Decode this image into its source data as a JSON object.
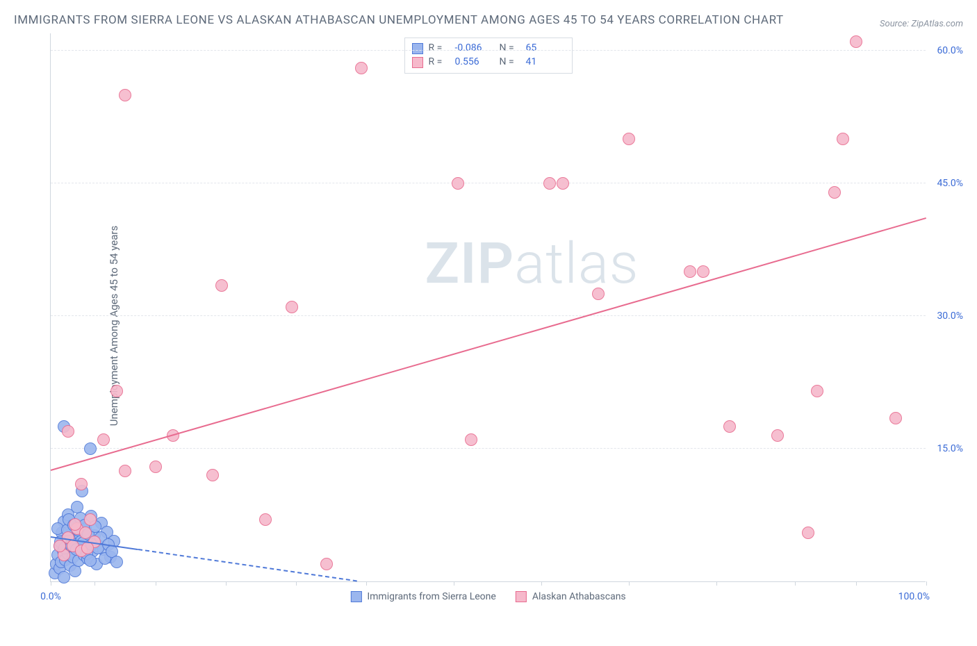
{
  "title": "IMMIGRANTS FROM SIERRA LEONE VS ALASKAN ATHABASCAN UNEMPLOYMENT AMONG AGES 45 TO 54 YEARS CORRELATION CHART",
  "source_prefix": "Source: ",
  "source_name": "ZipAtlas.com",
  "ylabel": "Unemployment Among Ages 45 to 54 years",
  "watermark_a": "ZIP",
  "watermark_b": "atlas",
  "chart": {
    "type": "scatter",
    "xlim": [
      0,
      100
    ],
    "ylim": [
      0,
      62
    ],
    "x_tick_positions": [
      0,
      5,
      12,
      20,
      28,
      36,
      46,
      56,
      66,
      76,
      85,
      92,
      100
    ],
    "x_min_label": "0.0%",
    "x_max_label": "100.0%",
    "y_ticks": [
      15,
      30,
      45,
      60
    ],
    "y_tick_labels": [
      "15.0%",
      "30.0%",
      "45.0%",
      "60.0%"
    ],
    "grid_color": "#e2e6eb",
    "axis_color": "#cfd6de",
    "tick_label_color": "#3b6bd6",
    "background_color": "#ffffff",
    "marker_radius": 9,
    "marker_border_width": 1,
    "marker_fill_opacity": 0.28,
    "series": [
      {
        "key": "sierra",
        "label": "Immigrants from Sierra Leone",
        "color_border": "#4f79d8",
        "color_fill": "#9bb6ee",
        "R": "-0.086",
        "N": "65",
        "trend": {
          "x1": 0,
          "y1": 5.0,
          "x2": 35,
          "y2": 0.0,
          "style": "solid_then_dash",
          "split_x": 10
        },
        "points": [
          [
            0.5,
            1.0
          ],
          [
            0.6,
            2.0
          ],
          [
            0.8,
            3.0
          ],
          [
            1.0,
            1.5
          ],
          [
            1.0,
            4.0
          ],
          [
            1.2,
            2.2
          ],
          [
            1.3,
            5.5
          ],
          [
            1.4,
            3.5
          ],
          [
            1.5,
            0.5
          ],
          [
            1.5,
            6.8
          ],
          [
            1.7,
            2.5
          ],
          [
            1.8,
            4.8
          ],
          [
            2.0,
            3.2
          ],
          [
            2.0,
            7.6
          ],
          [
            2.2,
            1.8
          ],
          [
            2.3,
            5.0
          ],
          [
            2.5,
            2.8
          ],
          [
            2.5,
            6.2
          ],
          [
            2.7,
            4.2
          ],
          [
            2.8,
            1.2
          ],
          [
            3.0,
            3.8
          ],
          [
            3.0,
            8.4
          ],
          [
            3.2,
            2.4
          ],
          [
            3.3,
            5.4
          ],
          [
            3.5,
            4.6
          ],
          [
            3.6,
            10.2
          ],
          [
            3.8,
            3.0
          ],
          [
            4.0,
            6.0
          ],
          [
            4.2,
            2.6
          ],
          [
            4.4,
            4.4
          ],
          [
            4.6,
            7.4
          ],
          [
            4.8,
            3.4
          ],
          [
            5.0,
            5.2
          ],
          [
            5.2,
            2.0
          ],
          [
            5.5,
            4.0
          ],
          [
            5.8,
            6.6
          ],
          [
            6.0,
            3.6
          ],
          [
            6.4,
            5.6
          ],
          [
            6.8,
            2.8
          ],
          [
            7.2,
            4.6
          ],
          [
            1.5,
            17.5
          ],
          [
            4.5,
            15.0
          ],
          [
            0.8,
            6.0
          ],
          [
            1.1,
            4.5
          ],
          [
            1.6,
            3.8
          ],
          [
            1.9,
            5.8
          ],
          [
            2.1,
            7.0
          ],
          [
            2.4,
            4.0
          ],
          [
            2.6,
            6.4
          ],
          [
            2.9,
            3.6
          ],
          [
            3.1,
            5.8
          ],
          [
            3.4,
            7.2
          ],
          [
            3.7,
            4.4
          ],
          [
            3.9,
            6.4
          ],
          [
            4.1,
            3.2
          ],
          [
            4.3,
            5.4
          ],
          [
            4.5,
            2.4
          ],
          [
            4.7,
            4.2
          ],
          [
            5.1,
            6.2
          ],
          [
            5.4,
            3.8
          ],
          [
            5.7,
            5.0
          ],
          [
            6.2,
            2.6
          ],
          [
            6.6,
            4.2
          ],
          [
            7.0,
            3.4
          ],
          [
            7.5,
            2.2
          ]
        ]
      },
      {
        "key": "athabascan",
        "label": "Alaskan Athabascans",
        "color_border": "#e86b8f",
        "color_fill": "#f6b9cb",
        "R": "0.556",
        "N": "41",
        "trend": {
          "x1": 0,
          "y1": 12.5,
          "x2": 100,
          "y2": 41.0,
          "style": "solid"
        },
        "points": [
          [
            1.5,
            3.0
          ],
          [
            2.0,
            5.0
          ],
          [
            2.5,
            4.0
          ],
          [
            3.0,
            6.0
          ],
          [
            3.5,
            3.5
          ],
          [
            4.0,
            5.5
          ],
          [
            4.5,
            7.0
          ],
          [
            5.0,
            4.5
          ],
          [
            2.0,
            17.0
          ],
          [
            3.5,
            11.0
          ],
          [
            6.0,
            16.0
          ],
          [
            7.5,
            21.5
          ],
          [
            8.5,
            12.5
          ],
          [
            12.0,
            13.0
          ],
          [
            14.0,
            16.5
          ],
          [
            18.5,
            12.0
          ],
          [
            19.5,
            33.5
          ],
          [
            24.5,
            7.0
          ],
          [
            27.5,
            31.0
          ],
          [
            31.5,
            2.0
          ],
          [
            35.5,
            58.0
          ],
          [
            46.5,
            45.0
          ],
          [
            48.0,
            16.0
          ],
          [
            57.0,
            45.0
          ],
          [
            58.5,
            45.0
          ],
          [
            62.5,
            32.5
          ],
          [
            66.0,
            50.0
          ],
          [
            73.0,
            35.0
          ],
          [
            74.5,
            35.0
          ],
          [
            77.5,
            17.5
          ],
          [
            83.0,
            16.5
          ],
          [
            86.5,
            5.5
          ],
          [
            87.5,
            21.5
          ],
          [
            89.5,
            44.0
          ],
          [
            90.5,
            50.0
          ],
          [
            92.0,
            61.0
          ],
          [
            96.5,
            18.5
          ],
          [
            8.5,
            55.0
          ],
          [
            1.0,
            4.0
          ],
          [
            2.8,
            6.5
          ],
          [
            4.2,
            3.8
          ]
        ]
      }
    ],
    "legend_top": {
      "r_label": "R =",
      "n_label": "N ="
    }
  }
}
